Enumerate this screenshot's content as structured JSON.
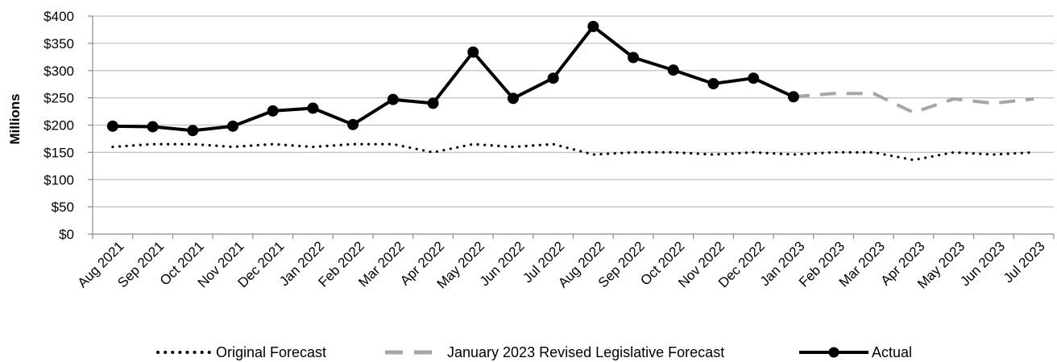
{
  "chart_data": {
    "type": "line",
    "ylabel": "Millions",
    "xlabel": "",
    "ylim": [
      0,
      400
    ],
    "yticks": [
      0,
      50,
      100,
      150,
      200,
      250,
      300,
      350,
      400
    ],
    "ytick_labels": [
      "$0",
      "$50",
      "$100",
      "$150",
      "$200",
      "$250",
      "$300",
      "$350",
      "$400"
    ],
    "grid": "horizontal",
    "legend": "bottom",
    "categories": [
      "Aug 2021",
      "Sep 2021",
      "Oct 2021",
      "Nov 2021",
      "Dec 2021",
      "Jan 2022",
      "Feb 2022",
      "Mar 2022",
      "Apr 2022",
      "May 2022",
      "Jun 2022",
      "Jul 2022",
      "Aug 2022",
      "Sep 2022",
      "Oct 2022",
      "Nov 2022",
      "Dec 2022",
      "Jan 2023",
      "Feb 2023",
      "Mar 2023",
      "Apr 2023",
      "May 2023",
      "Jun 2023",
      "Jul 2023"
    ],
    "series": [
      {
        "name": "Original Forecast",
        "style": "dotted",
        "color": "#000000",
        "values": [
          160,
          165,
          165,
          160,
          165,
          160,
          165,
          165,
          150,
          165,
          160,
          165,
          146,
          150,
          150,
          146,
          150,
          146,
          150,
          150,
          136,
          150,
          146,
          150
        ]
      },
      {
        "name": "January 2023 Revised Legislative Forecast",
        "style": "dashed",
        "color": "#a6a6a6",
        "values": [
          null,
          null,
          null,
          null,
          null,
          null,
          null,
          null,
          null,
          null,
          null,
          null,
          null,
          null,
          null,
          null,
          null,
          252,
          258,
          258,
          223,
          248,
          240,
          248
        ]
      },
      {
        "name": "Actual",
        "style": "solid-markers",
        "color": "#000000",
        "values": [
          198,
          197,
          190,
          198,
          226,
          231,
          201,
          247,
          240,
          334,
          249,
          286,
          381,
          324,
          301,
          276,
          286,
          252,
          null,
          null,
          null,
          null,
          null,
          null
        ]
      }
    ]
  }
}
